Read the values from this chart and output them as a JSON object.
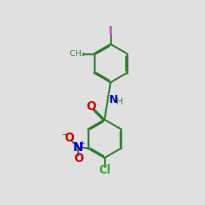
{
  "background_color": "#e0e0e0",
  "bond_color": "#2a7a2a",
  "bond_width": 1.8,
  "dbo": 0.055,
  "figsize": [
    3.0,
    3.0
  ],
  "dpi": 100,
  "atoms": {
    "I": {
      "color": "#cc44cc",
      "fontsize": 12,
      "fontweight": "bold"
    },
    "O": {
      "color": "#cc0000",
      "fontsize": 12,
      "fontweight": "bold"
    },
    "NH": {
      "color": "#0000cc",
      "fontsize": 11,
      "fontweight": "bold"
    },
    "H": {
      "color": "#2a7a2a",
      "fontsize": 10,
      "fontweight": "normal"
    },
    "N": {
      "color": "#0000cc",
      "fontsize": 13,
      "fontweight": "bold"
    },
    "Cl": {
      "color": "#33aa33",
      "fontsize": 12,
      "fontweight": "bold"
    },
    "CH3": {
      "color": "#2a7a2a",
      "fontsize": 9,
      "fontweight": "normal"
    }
  }
}
